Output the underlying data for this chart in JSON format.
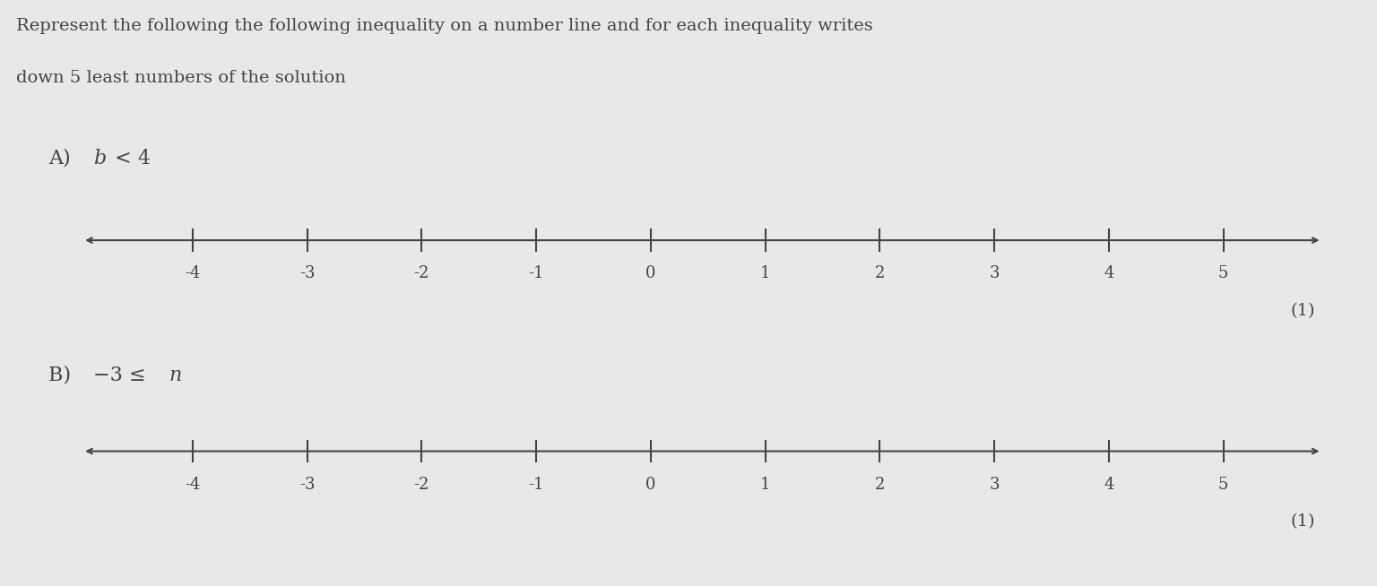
{
  "background_color": "#e8e8e8",
  "title_text_line1": "Represent the following the following inequality on a number line and for each inequality writes",
  "title_text_line2": "down 5 least numbers of the solution",
  "title_fontsize": 14,
  "title_color": "#444444",
  "tick_values": [
    -4,
    -3,
    -2,
    -1,
    0,
    1,
    2,
    3,
    4,
    5
  ],
  "x_min": -4.9,
  "x_max": 5.8,
  "mark_1": "(1)",
  "line_color": "#444444",
  "tick_color": "#444444",
  "text_color": "#444444",
  "label_fontsize": 16,
  "tick_fontsize": 13,
  "mark_fontsize": 14,
  "label_A_prefix": "A) ",
  "label_A_var": "b",
  "label_A_suffix": " < 4",
  "label_B_prefix": "B) ",
  "label_B_main": "−3 ≤ ",
  "label_B_var": "n"
}
